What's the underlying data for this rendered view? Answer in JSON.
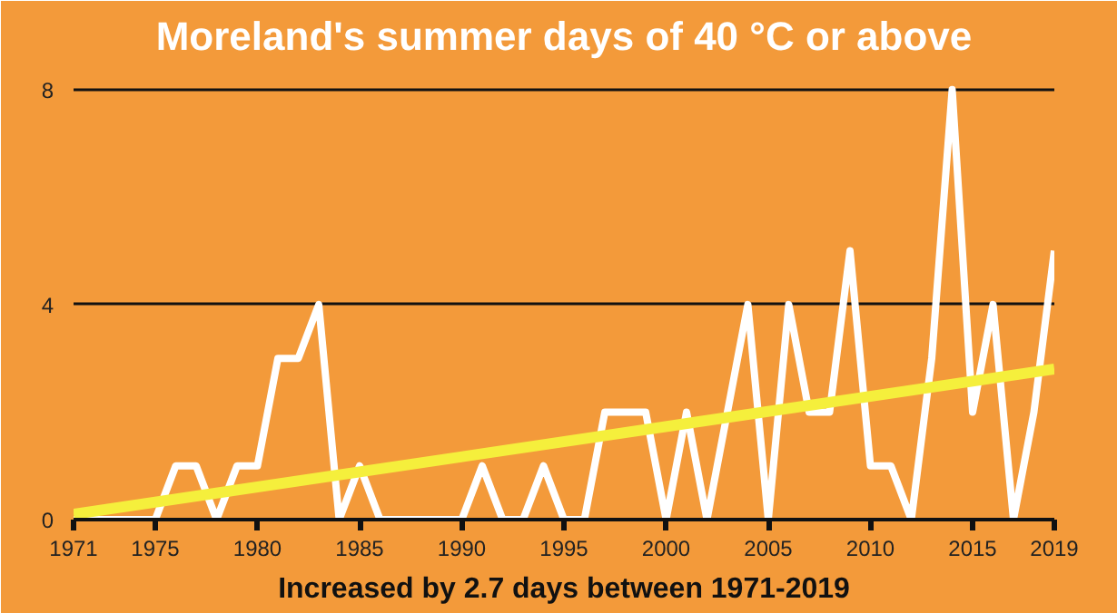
{
  "chart_data": {
    "type": "line",
    "title": "Moreland's summer days of 40 °C or above",
    "annotations": [
      "Increased by 2.7 days between 1971-2019"
    ],
    "x": [
      1971,
      1972,
      1973,
      1974,
      1975,
      1976,
      1977,
      1978,
      1979,
      1980,
      1981,
      1982,
      1983,
      1984,
      1985,
      1986,
      1987,
      1988,
      1989,
      1990,
      1991,
      1992,
      1993,
      1994,
      1995,
      1996,
      1997,
      1998,
      1999,
      2000,
      2001,
      2002,
      2003,
      2004,
      2005,
      2006,
      2007,
      2008,
      2009,
      2010,
      2011,
      2012,
      2013,
      2014,
      2015,
      2016,
      2017,
      2018,
      2019
    ],
    "series": [
      {
        "color": "#ffffff",
        "values": [
          0,
          0,
          0,
          0,
          0,
          1,
          1,
          0,
          1,
          1,
          3,
          3,
          4,
          0,
          1,
          0,
          0,
          0,
          0,
          0,
          1,
          0,
          0,
          1,
          0,
          0,
          2,
          2,
          2,
          0,
          2,
          0,
          2,
          4,
          0,
          4,
          2,
          2,
          5,
          1,
          1,
          0,
          3,
          8,
          2,
          4,
          0,
          2,
          5
        ]
      },
      {
        "color": "#f5ef3c",
        "x": [
          1971,
          2019
        ],
        "values": [
          0.1,
          2.8
        ]
      }
    ],
    "xlim": [
      1971,
      2019
    ],
    "ylim": [
      0,
      8.4
    ],
    "xticks": [
      1971,
      1975,
      1980,
      1985,
      1990,
      1995,
      2000,
      2005,
      2010,
      2015,
      2019
    ],
    "yticks": [
      0,
      4,
      8
    ],
    "grid": "y",
    "marker": "none",
    "line_style": "solid"
  }
}
